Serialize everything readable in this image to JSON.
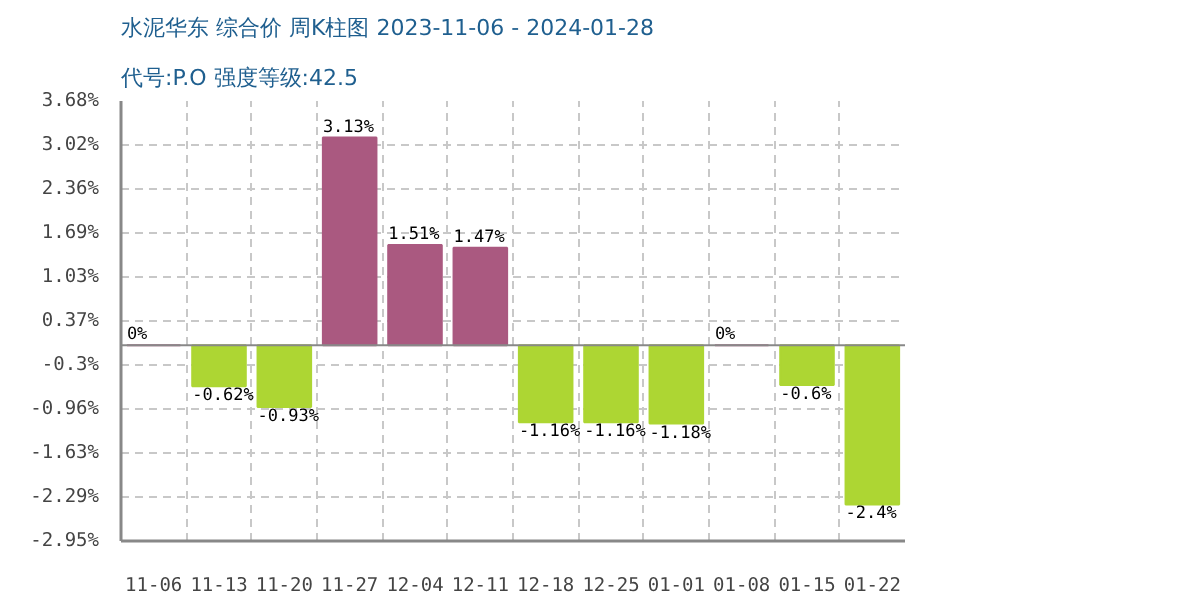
{
  "chart_data": {
    "type": "bar",
    "title": "水泥华东 综合价 周K柱图 2023-11-06 - 2024-01-28",
    "subtitle": "代号:P.O 强度等级:42.5",
    "categories": [
      "11-06",
      "11-13",
      "11-20",
      "11-27",
      "12-04",
      "12-11",
      "12-18",
      "12-25",
      "01-01",
      "01-08",
      "01-15",
      "01-22"
    ],
    "values": [
      0,
      -0.62,
      -0.93,
      3.13,
      1.51,
      1.47,
      -1.16,
      -1.16,
      -1.18,
      0,
      -0.6,
      -2.4
    ],
    "colors": [
      "#aa5980",
      "#add633",
      "#add633",
      "#aa5980",
      "#aa5980",
      "#aa5980",
      "#add633",
      "#add633",
      "#add633",
      "#aa5980",
      "#add633",
      "#add633"
    ],
    "value_labels": [
      "0%",
      "-0.62%",
      "-0.93%",
      "3.13%",
      "1.51%",
      "1.47%",
      "-1.16%",
      "-1.16%",
      "-1.18%",
      "0%",
      "-0.6%",
      "-2.4%"
    ],
    "ylim": [
      -2.95,
      3.68
    ],
    "yticks": [
      {
        "value": 3.68,
        "label": "3.68%"
      },
      {
        "value": 3.02,
        "label": "3.02%"
      },
      {
        "value": 2.36,
        "label": "2.36%"
      },
      {
        "value": 1.69,
        "label": "1.69%"
      },
      {
        "value": 1.03,
        "label": "1.03%"
      },
      {
        "value": 0.37,
        "label": "0.37%"
      },
      {
        "value": -0.3,
        "label": "-0.3%"
      },
      {
        "value": -0.96,
        "label": "-0.96%"
      },
      {
        "value": -1.63,
        "label": "-1.63%"
      },
      {
        "value": -2.29,
        "label": "-2.29%"
      },
      {
        "value": -2.95,
        "label": "-2.95%"
      }
    ],
    "grid": true
  }
}
